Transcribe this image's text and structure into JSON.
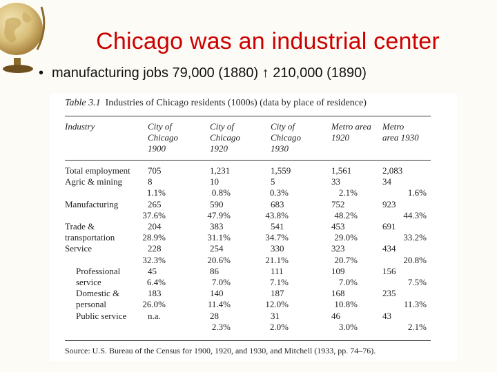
{
  "slide": {
    "title": "Chicago was an industrial center",
    "bullet": "manufacturing jobs 79,000  (1880) ↑ 210,000  (1890)",
    "bullet_marker": "•"
  },
  "table": {
    "caption_label": "Table 3.1",
    "caption_text": "Industries of Chicago residents (1000s) (data by place of residence)",
    "headers": [
      [
        "Industry"
      ],
      [
        "City of",
        "Chicago",
        "1900"
      ],
      [
        "City of",
        "Chicago",
        "1920"
      ],
      [
        "City of",
        "Chicago",
        "1930"
      ],
      [
        "Metro area",
        "1920"
      ],
      [
        "Metro",
        "area 1930"
      ]
    ],
    "rows": [
      {
        "label": "Total employment",
        "indent": false,
        "v": [
          "705",
          "1,231",
          "1,559",
          "1,561",
          "2,083"
        ]
      },
      {
        "label": "Agric  & mining",
        "indent": false,
        "v": [
          "8",
          "10",
          "5",
          "33",
          "34"
        ]
      },
      {
        "label": "",
        "indent": false,
        "v": [
          "1.1%",
          "0.8%",
          "0.3%",
          "2.1%",
          "1.6%"
        ]
      },
      {
        "label": "Manufacturing",
        "indent": false,
        "v": [
          "265",
          "590",
          "683",
          "752",
          "923"
        ]
      },
      {
        "label": "",
        "indent": false,
        "v": [
          "37.6%",
          "47.9%",
          "43.8%",
          "48.2%",
          "44.3%"
        ]
      },
      {
        "label": "Trade &",
        "indent": false,
        "v": [
          "204",
          "383",
          "541",
          "453",
          "691"
        ]
      },
      {
        "label": "transportation",
        "indent": false,
        "v": [
          "28.9%",
          "31.1%",
          "34.7%",
          "29.0%",
          "33.2%"
        ]
      },
      {
        "label": "Service",
        "indent": false,
        "v": [
          "228",
          "254",
          "330",
          "323",
          "434"
        ]
      },
      {
        "label": "",
        "indent": false,
        "v": [
          "32.3%",
          "20.6%",
          "21.1%",
          "20.7%",
          "20.8%"
        ]
      },
      {
        "label": "Professional",
        "indent": true,
        "v": [
          "45",
          "86",
          "111",
          "109",
          "156"
        ]
      },
      {
        "label": "service",
        "indent": true,
        "v": [
          "6.4%",
          "7.0%",
          "7.1%",
          "7.0%",
          "7.5%"
        ]
      },
      {
        "label": "Domestic &",
        "indent": true,
        "v": [
          "183",
          "140",
          "187",
          "168",
          "235"
        ]
      },
      {
        "label": "personal",
        "indent": true,
        "v": [
          "26.0%",
          "11.4%",
          "12.0%",
          "10.8%",
          "11.3%"
        ]
      },
      {
        "label": "Public service",
        "indent": true,
        "v": [
          "n.a.",
          "28",
          "31",
          "46",
          "43"
        ]
      },
      {
        "label": "",
        "indent": false,
        "v": [
          "",
          "2.3%",
          "2.0%",
          "3.0%",
          "2.1%"
        ]
      }
    ],
    "source": "Source: U.S. Bureau of the Census for 1900, 1920, and 1930, and Mitchell (1933, pp. 74–76)."
  }
}
